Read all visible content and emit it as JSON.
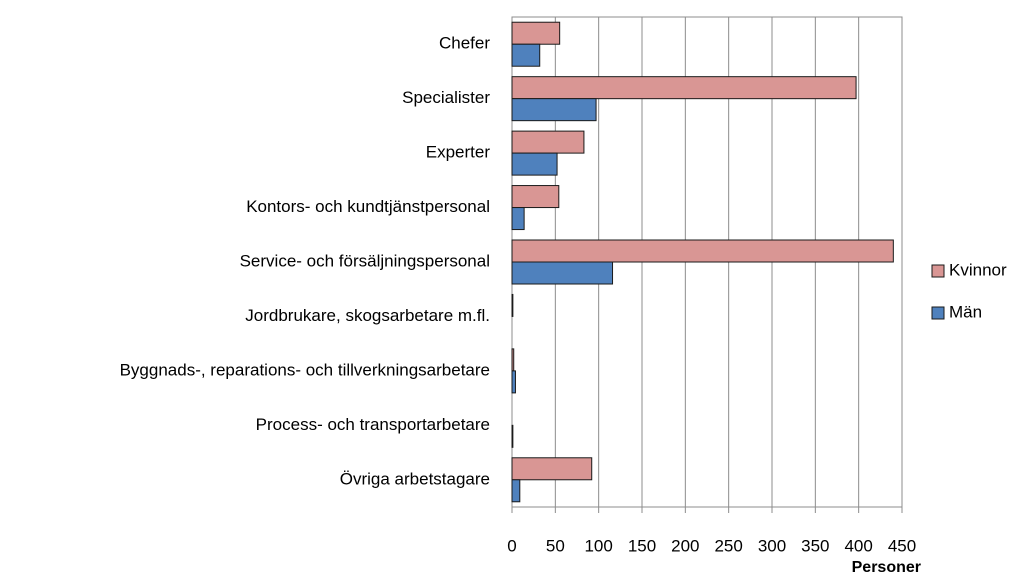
{
  "chart_data": {
    "type": "bar",
    "orientation": "horizontal",
    "x_label": "Personer",
    "categories": [
      "Chefer",
      "Specialister",
      "Experter",
      "Kontors- och kundtjänstpersonal",
      "Service- och försäljningspersonal",
      "Jordbrukare, skogsarbetare m.fl.",
      "Byggnads-, reparations- och tillverkningsarbetare",
      "Process- och transportarbetare",
      "Övriga arbetstagare"
    ],
    "series": [
      {
        "name": "Kvinnor",
        "color": "#d99694",
        "values": [
          55,
          397,
          83,
          54,
          440,
          1,
          2,
          0,
          92
        ]
      },
      {
        "name": "Män",
        "color": "#4f81bd",
        "values": [
          32,
          97,
          52,
          14,
          116,
          0,
          4,
          1,
          9
        ]
      }
    ],
    "xlim": [
      0,
      450
    ],
    "xticks": [
      0,
      50,
      100,
      150,
      200,
      250,
      300,
      350,
      400,
      450
    ],
    "grid": true,
    "legend": "right"
  }
}
